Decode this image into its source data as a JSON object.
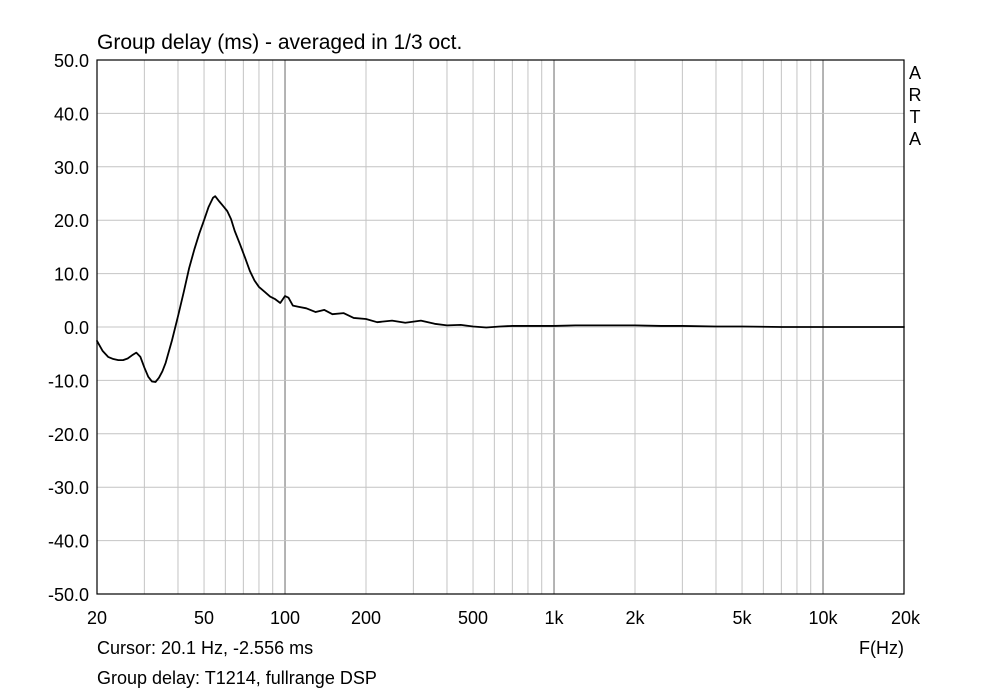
{
  "chart_data": {
    "type": "line",
    "title": "Group delay (ms) - averaged in 1/3 oct.",
    "x_scale": "log",
    "xlim": [
      20,
      20000
    ],
    "ylim": [
      -50,
      50
    ],
    "grid": true,
    "x_ticks": [
      {
        "value": 20,
        "label": "20"
      },
      {
        "value": 50,
        "label": "50"
      },
      {
        "value": 100,
        "label": "100"
      },
      {
        "value": 200,
        "label": "200"
      },
      {
        "value": 500,
        "label": "500"
      },
      {
        "value": 1000,
        "label": "1k"
      },
      {
        "value": 2000,
        "label": "2k"
      },
      {
        "value": 5000,
        "label": "5k"
      },
      {
        "value": 10000,
        "label": "10k"
      },
      {
        "value": 20000,
        "label": "20k"
      }
    ],
    "y_ticks": [
      {
        "value": 50,
        "label": "50.0"
      },
      {
        "value": 40,
        "label": "40.0"
      },
      {
        "value": 30,
        "label": "30.0"
      },
      {
        "value": 20,
        "label": "20.0"
      },
      {
        "value": 10,
        "label": "10.0"
      },
      {
        "value": 0,
        "label": "0.0"
      },
      {
        "value": -10,
        "label": "-10.0"
      },
      {
        "value": -20,
        "label": "-20.0"
      },
      {
        "value": -30,
        "label": "-30.0"
      },
      {
        "value": -40,
        "label": "-40.0"
      },
      {
        "value": -50,
        "label": "-50.0"
      }
    ],
    "xlabel": "F(Hz)",
    "brand": "ARTA",
    "cursor_text": "Cursor: 20.1 Hz, -2.556 ms",
    "legend_text": "Group delay: T1214, fullrange DSP",
    "series": [
      {
        "color": "#000000",
        "x": [
          20,
          21,
          22,
          23,
          24,
          25,
          26,
          27,
          28,
          29,
          30,
          31,
          32,
          33,
          34,
          35,
          36,
          38,
          40,
          42,
          44,
          46,
          48,
          50,
          52,
          54,
          55,
          57,
          59,
          61,
          63,
          65,
          68,
          71,
          74,
          77,
          80,
          84,
          88,
          92,
          96,
          100,
          103,
          107,
          112,
          120,
          130,
          140,
          150,
          165,
          180,
          200,
          220,
          250,
          280,
          320,
          360,
          400,
          450,
          500,
          560,
          630,
          700,
          800,
          900,
          1000,
          1200,
          1500,
          1800,
          2000,
          2500,
          3000,
          4000,
          5000,
          7000,
          10000,
          15000,
          20000
        ],
        "y": [
          -2.6,
          -4.5,
          -5.6,
          -6.0,
          -6.2,
          -6.2,
          -5.9,
          -5.3,
          -4.8,
          -5.6,
          -7.6,
          -9.3,
          -10.2,
          -10.3,
          -9.5,
          -8.3,
          -6.7,
          -2.5,
          2.0,
          6.5,
          11.0,
          14.5,
          17.5,
          20.0,
          22.5,
          24.2,
          24.5,
          23.5,
          22.6,
          21.7,
          20.2,
          18.0,
          15.5,
          13.0,
          10.5,
          8.7,
          7.5,
          6.6,
          5.7,
          5.2,
          4.5,
          5.8,
          5.5,
          4.0,
          3.8,
          3.5,
          2.8,
          3.2,
          2.4,
          2.6,
          1.7,
          1.5,
          0.9,
          1.2,
          0.8,
          1.2,
          0.6,
          0.3,
          0.4,
          0.1,
          -0.1,
          0.1,
          0.2,
          0.2,
          0.2,
          0.2,
          0.3,
          0.3,
          0.3,
          0.3,
          0.2,
          0.2,
          0.1,
          0.1,
          0.0,
          0.0,
          0.0,
          0.0
        ]
      }
    ]
  }
}
